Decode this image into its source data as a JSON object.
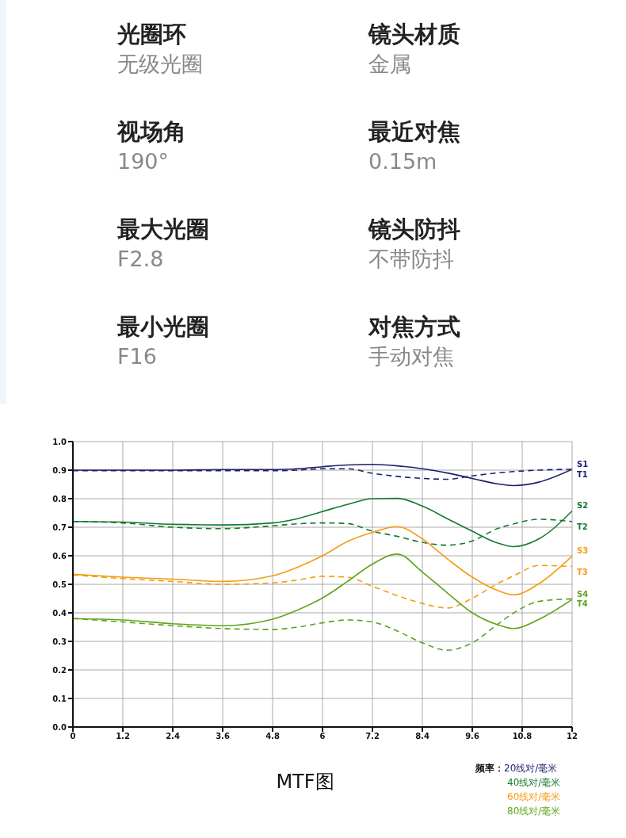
{
  "chart_data": [
    {
      "type": "other",
      "annotations": [
        "光圈环",
        "无级光圈",
        "镜头材质",
        "金属",
        "视场角",
        "190°",
        "最近对焦",
        "0.15m",
        "最大光圈",
        "F2.8",
        "镜头防抖",
        "不带防抖",
        "最小光圈",
        "F16",
        "对焦方式",
        "手动对焦"
      ]
    },
    {
      "type": "line",
      "title": "MTF图",
      "x": [
        0,
        1.2,
        2.4,
        3.6,
        4.8,
        5.4,
        6,
        6.6,
        7.2,
        7.8,
        8.4,
        9,
        9.6,
        10.2,
        10.6,
        11.2,
        12
      ],
      "series": [
        {
          "name": "S1",
          "color": "#1c1f6e",
          "line_style": "solid",
          "values": [
            0.9,
            0.9,
            0.9,
            0.902,
            0.902,
            0.905,
            0.912,
            0.918,
            0.92,
            0.915,
            0.905,
            0.89,
            0.871,
            0.852,
            0.846,
            0.858,
            0.903
          ]
        },
        {
          "name": "T1",
          "color": "#1c1f6e",
          "line_style": "dashed",
          "values": [
            0.898,
            0.898,
            0.898,
            0.898,
            0.898,
            0.9,
            0.905,
            0.905,
            0.889,
            0.878,
            0.871,
            0.868,
            0.88,
            0.89,
            0.895,
            0.9,
            0.903
          ]
        },
        {
          "name": "S2",
          "color": "#147a2e",
          "line_style": "solid",
          "values": [
            0.72,
            0.718,
            0.71,
            0.708,
            0.715,
            0.73,
            0.755,
            0.78,
            0.8,
            0.801,
            0.774,
            0.73,
            0.686,
            0.645,
            0.632,
            0.659,
            0.757
          ]
        },
        {
          "name": "T2",
          "color": "#147a2e",
          "line_style": "dashed",
          "values": [
            0.72,
            0.715,
            0.7,
            0.695,
            0.705,
            0.712,
            0.715,
            0.713,
            0.686,
            0.668,
            0.647,
            0.637,
            0.652,
            0.695,
            0.712,
            0.728,
            0.72
          ]
        },
        {
          "name": "S3",
          "color": "#f39c12",
          "line_style": "solid",
          "values": [
            0.535,
            0.525,
            0.518,
            0.51,
            0.53,
            0.56,
            0.6,
            0.65,
            0.682,
            0.702,
            0.659,
            0.589,
            0.525,
            0.479,
            0.463,
            0.502,
            0.599
          ]
        },
        {
          "name": "T3",
          "color": "#f39c12",
          "line_style": "dashed",
          "values": [
            0.533,
            0.52,
            0.51,
            0.5,
            0.505,
            0.515,
            0.528,
            0.525,
            0.493,
            0.46,
            0.433,
            0.417,
            0.451,
            0.502,
            0.53,
            0.566,
            0.562
          ]
        },
        {
          "name": "S4",
          "color": "#5fa41c",
          "line_style": "solid",
          "values": [
            0.38,
            0.375,
            0.362,
            0.355,
            0.378,
            0.41,
            0.452,
            0.51,
            0.571,
            0.606,
            0.543,
            0.47,
            0.4,
            0.359,
            0.345,
            0.377,
            0.447
          ]
        },
        {
          "name": "T4",
          "color": "#5fa41c",
          "line_style": "dashed",
          "values": [
            0.38,
            0.368,
            0.355,
            0.345,
            0.342,
            0.35,
            0.365,
            0.375,
            0.368,
            0.336,
            0.295,
            0.269,
            0.295,
            0.359,
            0.4,
            0.44,
            0.449
          ]
        }
      ],
      "xlim": [
        0,
        12
      ],
      "xticks": [
        0,
        1.2,
        2.4,
        3.6,
        4.8,
        6,
        7.2,
        8.4,
        9.6,
        10.8,
        12
      ],
      "ylim": [
        0,
        1
      ],
      "yticks": [
        {
          "value": 0,
          "label": "0.0"
        },
        0.1,
        0.2,
        0.3,
        0.4,
        0.5,
        0.6,
        0.7,
        0.8,
        0.9,
        {
          "value": 1,
          "label": "1.0"
        }
      ],
      "grid": true,
      "marker": "none",
      "annotations": [
        "频率：",
        "20线对/毫米",
        "40线对/毫米",
        "60线对/毫米",
        "80线对/毫米"
      ]
    }
  ]
}
